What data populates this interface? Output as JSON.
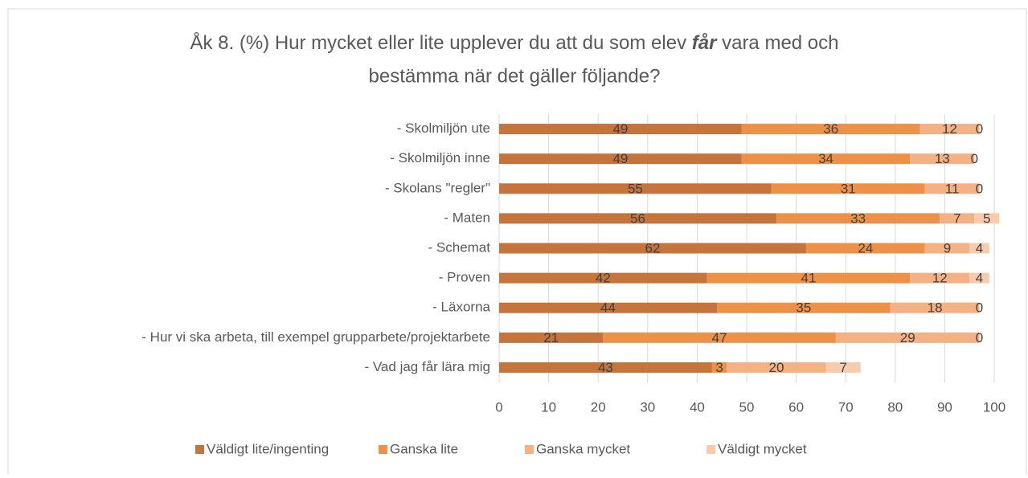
{
  "chart_data": {
    "type": "stacked_bar_horizontal",
    "title": [
      "Åk 8. (%) Hur mycket eller lite upplever du att du som elev ",
      "får",
      " vara med och",
      "bestämma när det gäller följande?"
    ],
    "categories": [
      "- Skolmiljön ute",
      "- Skolmiljön inne",
      "- Skolans \"regler\"",
      "- Maten",
      "- Schemat",
      "- Proven",
      "- Läxorna",
      "- Hur vi ska arbeta, till exempel grupparbete/projektarbete",
      "- Vad jag får lära mig"
    ],
    "series": [
      {
        "name": "Väldigt lite/ingenting",
        "color": "#c5743b",
        "values": [
          49,
          49,
          55,
          56,
          62,
          42,
          44,
          21,
          43
        ]
      },
      {
        "name": "Ganska lite",
        "color": "#ee9148",
        "values": [
          36,
          34,
          31,
          33,
          24,
          41,
          35,
          47,
          3
        ]
      },
      {
        "name": "Ganska mycket",
        "color": "#f4b183",
        "values": [
          12,
          13,
          11,
          7,
          9,
          12,
          18,
          29,
          20
        ]
      },
      {
        "name": "Väldigt mycket",
        "color": "#f8cbad",
        "values": [
          0,
          0,
          0,
          5,
          4,
          4,
          0,
          0,
          7
        ]
      }
    ],
    "xlim": [
      0,
      100
    ],
    "xticks": [
      0,
      10,
      20,
      30,
      40,
      50,
      60,
      70,
      80,
      90,
      100
    ],
    "grid": true,
    "legend": "bottom"
  }
}
